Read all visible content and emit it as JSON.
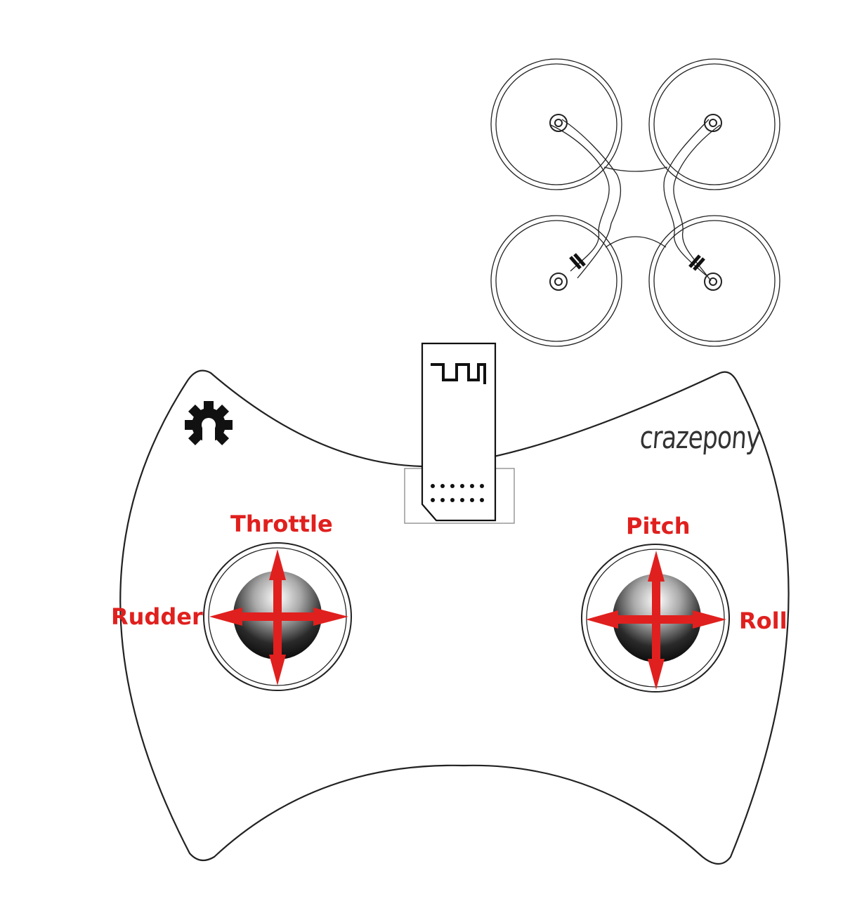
{
  "brand": {
    "name": "crazepony"
  },
  "controls": {
    "throttle": "Throttle",
    "rudder": "Rudder",
    "pitch": "Pitch",
    "roll": "Roll"
  },
  "icons": {
    "drone": "quadcopter-icon",
    "radio_module": "radio-module-icon",
    "logo": "gear-logo-icon",
    "arrows": "four-way-arrow-icon"
  },
  "colors": {
    "arrow": "#e0201e",
    "outline": "#222222"
  }
}
